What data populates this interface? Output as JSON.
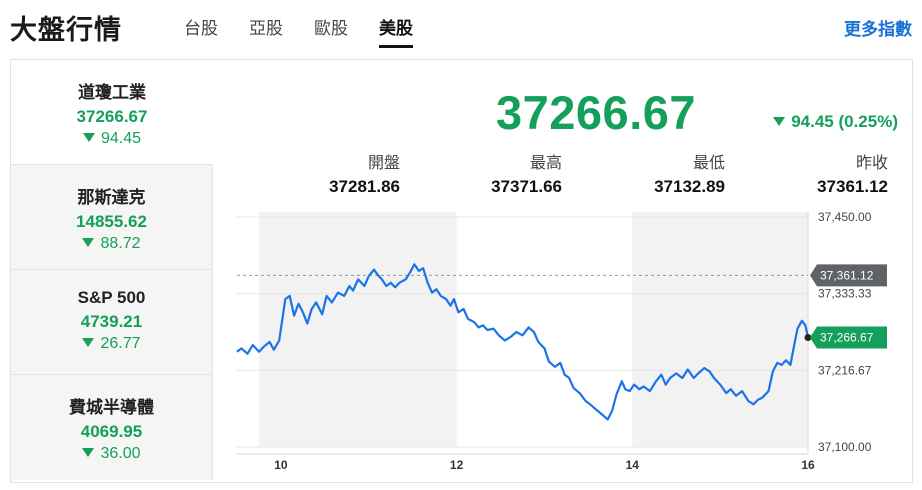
{
  "header": {
    "title": "大盤行情",
    "tabs": [
      "台股",
      "亞股",
      "歐股",
      "美股"
    ],
    "active_tab": "美股",
    "more_link": "更多指數"
  },
  "indices": [
    {
      "name": "道瓊工業",
      "value": "37266.67",
      "change": "94.45"
    },
    {
      "name": "那斯達克",
      "value": "14855.62",
      "change": "88.72"
    },
    {
      "name": "S&P 500",
      "value": "4739.21",
      "change": "26.77"
    },
    {
      "name": "費城半導體",
      "value": "4069.95",
      "change": "36.00"
    }
  ],
  "colors": {
    "down": "#14a05a",
    "line": "#1a73e8",
    "accent": "#1a6fd8"
  },
  "detail": {
    "price": "37266.67",
    "change": "94.45 (0.25%)",
    "stats": [
      {
        "label": "開盤",
        "value": "37281.86"
      },
      {
        "label": "最高",
        "value": "37371.66"
      },
      {
        "label": "最低",
        "value": "37132.89"
      },
      {
        "label": "昨收",
        "value": "37361.12"
      }
    ]
  },
  "chart_data": {
    "type": "line",
    "x_ticks": [
      "10",
      "12",
      "14",
      "16"
    ],
    "y_ticks": [
      "37,450.00",
      "37,333.33",
      "37,216.67",
      "37,100.00"
    ],
    "ylim": [
      37100,
      37450
    ],
    "xlim": [
      9.5,
      16.0
    ],
    "previous_close": 37361.12,
    "previous_close_label": "37,361.12",
    "last_label": "37,266.67",
    "series": [
      {
        "values": [
          [
            9.5,
            37245
          ],
          [
            9.55,
            37250
          ],
          [
            9.62,
            37242
          ],
          [
            9.68,
            37255
          ],
          [
            9.75,
            37245
          ],
          [
            9.8,
            37252
          ],
          [
            9.87,
            37260
          ],
          [
            9.92,
            37248
          ],
          [
            9.98,
            37262
          ],
          [
            10.05,
            37325
          ],
          [
            10.1,
            37330
          ],
          [
            10.15,
            37300
          ],
          [
            10.2,
            37318
          ],
          [
            10.25,
            37305
          ],
          [
            10.3,
            37288
          ],
          [
            10.35,
            37310
          ],
          [
            10.4,
            37320
          ],
          [
            10.47,
            37302
          ],
          [
            10.52,
            37330
          ],
          [
            10.58,
            37320
          ],
          [
            10.65,
            37335
          ],
          [
            10.72,
            37330
          ],
          [
            10.78,
            37345
          ],
          [
            10.82,
            37338
          ],
          [
            10.88,
            37355
          ],
          [
            10.95,
            37345
          ],
          [
            11.0,
            37360
          ],
          [
            11.06,
            37370
          ],
          [
            11.1,
            37362
          ],
          [
            11.15,
            37355
          ],
          [
            11.2,
            37345
          ],
          [
            11.25,
            37350
          ],
          [
            11.3,
            37343
          ],
          [
            11.35,
            37350
          ],
          [
            11.42,
            37355
          ],
          [
            11.48,
            37368
          ],
          [
            11.52,
            37378
          ],
          [
            11.57,
            37368
          ],
          [
            11.62,
            37372
          ],
          [
            11.67,
            37350
          ],
          [
            11.72,
            37335
          ],
          [
            11.77,
            37340
          ],
          [
            11.82,
            37330
          ],
          [
            11.88,
            37325
          ],
          [
            11.93,
            37315
          ],
          [
            11.97,
            37325
          ],
          [
            12.02,
            37305
          ],
          [
            12.08,
            37310
          ],
          [
            12.13,
            37295
          ],
          [
            12.2,
            37290
          ],
          [
            12.25,
            37282
          ],
          [
            12.3,
            37285
          ],
          [
            12.35,
            37278
          ],
          [
            12.42,
            37280
          ],
          [
            12.48,
            37270
          ],
          [
            12.55,
            37262
          ],
          [
            12.62,
            37268
          ],
          [
            12.68,
            37275
          ],
          [
            12.75,
            37270
          ],
          [
            12.82,
            37282
          ],
          [
            12.88,
            37275
          ],
          [
            12.93,
            37260
          ],
          [
            13.0,
            37250
          ],
          [
            13.05,
            37230
          ],
          [
            13.12,
            37222
          ],
          [
            13.18,
            37228
          ],
          [
            13.23,
            37210
          ],
          [
            13.28,
            37205
          ],
          [
            13.33,
            37190
          ],
          [
            13.4,
            37182
          ],
          [
            13.47,
            37170
          ],
          [
            13.52,
            37165
          ],
          [
            13.58,
            37158
          ],
          [
            13.65,
            37150
          ],
          [
            13.72,
            37142
          ],
          [
            13.77,
            37155
          ],
          [
            13.82,
            37180
          ],
          [
            13.88,
            37200
          ],
          [
            13.92,
            37188
          ],
          [
            13.97,
            37185
          ],
          [
            14.02,
            37195
          ],
          [
            14.08,
            37188
          ],
          [
            14.13,
            37192
          ],
          [
            14.2,
            37185
          ],
          [
            14.27,
            37200
          ],
          [
            14.33,
            37210
          ],
          [
            14.38,
            37195
          ],
          [
            14.43,
            37205
          ],
          [
            14.5,
            37212
          ],
          [
            14.57,
            37205
          ],
          [
            14.63,
            37218
          ],
          [
            14.7,
            37205
          ],
          [
            14.75,
            37212
          ],
          [
            14.82,
            37220
          ],
          [
            14.88,
            37215
          ],
          [
            14.93,
            37205
          ],
          [
            15.0,
            37195
          ],
          [
            15.07,
            37182
          ],
          [
            15.12,
            37188
          ],
          [
            15.18,
            37178
          ],
          [
            15.25,
            37185
          ],
          [
            15.32,
            37170
          ],
          [
            15.38,
            37165
          ],
          [
            15.43,
            37172
          ],
          [
            15.48,
            37175
          ],
          [
            15.55,
            37185
          ],
          [
            15.6,
            37215
          ],
          [
            15.65,
            37228
          ],
          [
            15.7,
            37225
          ],
          [
            15.75,
            37232
          ],
          [
            15.8,
            37225
          ],
          [
            15.85,
            37260
          ],
          [
            15.88,
            37280
          ],
          [
            15.93,
            37292
          ],
          [
            15.97,
            37285
          ],
          [
            16.0,
            37266.67
          ]
        ]
      }
    ]
  }
}
